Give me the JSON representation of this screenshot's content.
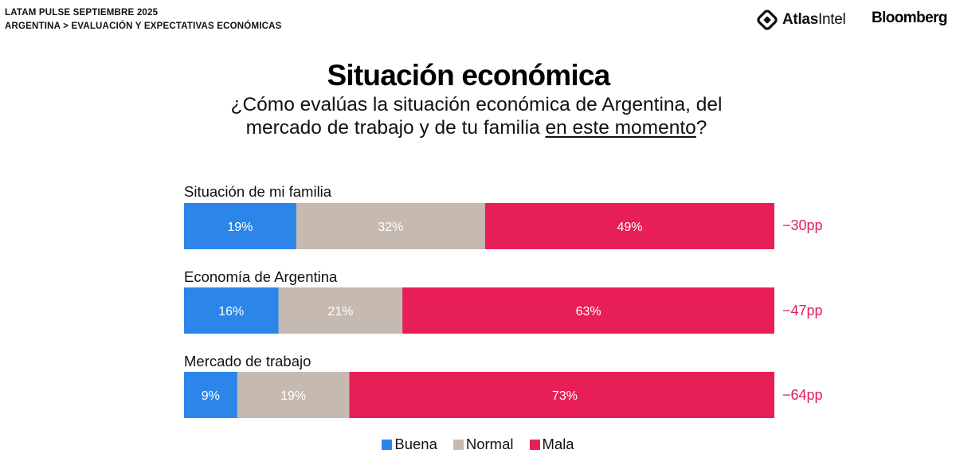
{
  "header": {
    "line1": "LATAM PULSE SEPTIEMBRE 2025",
    "line2": "ARGENTINA > EVALUACIÓN Y EXPECTATIVAS ECONÓMICAS",
    "atlas_prefix": "Atlas",
    "atlas_suffix": "Intel",
    "bloomberg": "Bloomberg"
  },
  "colors": {
    "buena": "#2c86ea",
    "normal": "#c6bab0",
    "mala": "#e81e58",
    "pp_text": "#e01e57"
  },
  "chart_data": {
    "type": "bar",
    "orientation": "horizontal",
    "stacked": true,
    "title": "Situación económica",
    "subtitle_part1": "¿Cómo evalúas la situación económica de Argentina, del",
    "subtitle_part2": "mercado de trabajo y de tu familia ",
    "subtitle_underlined": "en este momento",
    "subtitle_end": "?",
    "categories": [
      "Situación de mi familia",
      "Economía de Argentina",
      "Mercado de trabajo"
    ],
    "series": [
      {
        "name": "Buena",
        "values": [
          19,
          16,
          9
        ],
        "labels": [
          "19%",
          "16%",
          "9%"
        ]
      },
      {
        "name": "Normal",
        "values": [
          32,
          21,
          19
        ],
        "labels": [
          "32%",
          "21%",
          "19%"
        ]
      },
      {
        "name": "Mala",
        "values": [
          49,
          63,
          73
        ],
        "labels": [
          "49%",
          "63%",
          "73%"
        ]
      }
    ],
    "net_labels": [
      "−30pp",
      "−47pp",
      "−64pp"
    ],
    "legend": [
      "Buena",
      "Normal",
      "Mala"
    ],
    "xlim": [
      0,
      100
    ]
  }
}
